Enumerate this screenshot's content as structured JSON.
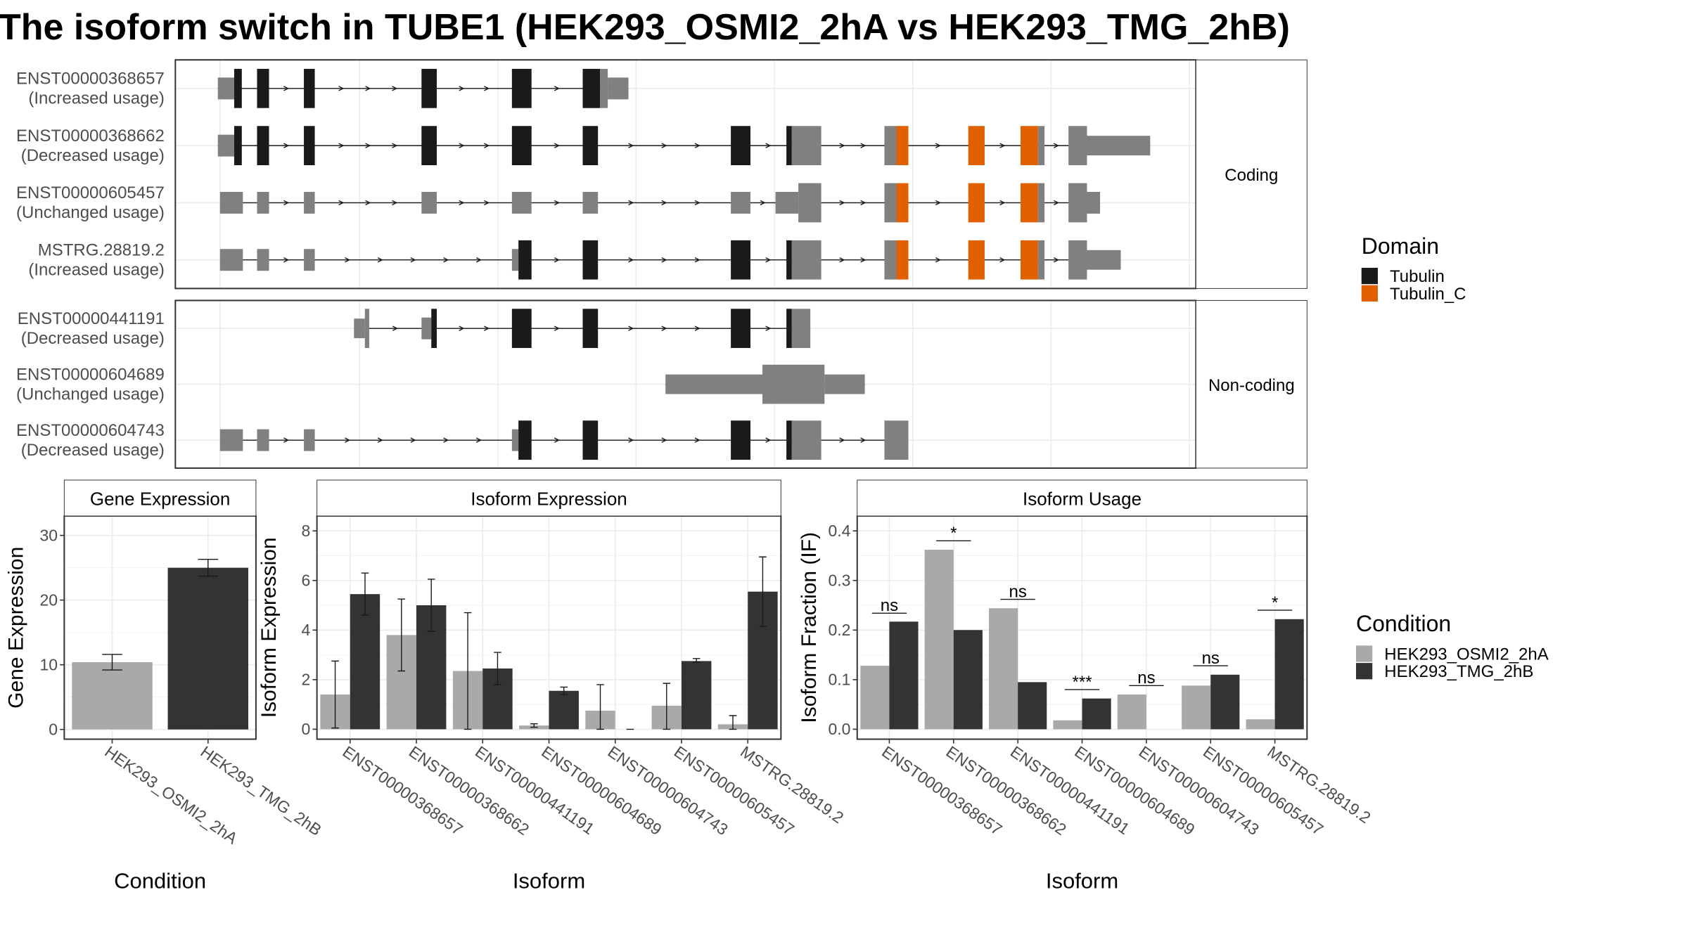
{
  "title": "The isoform switch in TUBE1 (HEK293_OSMI2_2hA vs HEK293_TMG_2hB)",
  "colors": {
    "utr": "#808080",
    "tubulin": "#1a1a1a",
    "tubulin_c": "#e06000",
    "cond_a": "#a9a9a9",
    "cond_b": "#333333"
  },
  "structure": {
    "coding_label": "Coding",
    "noncoding_label": "Non-coding",
    "coding": [
      {
        "id": "ENST00000368657",
        "usage": "(Increased usage)",
        "features": [
          [
            200,
            215,
            "utr",
            0.5
          ],
          [
            215,
            222,
            "tubulin",
            0.9
          ],
          [
            236,
            247,
            "tubulin",
            0.9
          ],
          [
            279,
            289,
            "tubulin",
            0.9
          ],
          [
            387,
            401,
            "tubulin",
            0.9
          ],
          [
            470,
            488,
            "tubulin",
            0.9
          ],
          [
            535,
            551,
            "tubulin",
            0.9
          ],
          [
            551,
            558,
            "utr",
            0.9
          ],
          [
            558,
            577,
            "utr",
            0.5
          ]
        ]
      },
      {
        "id": "ENST00000368662",
        "usage": "(Decreased usage)",
        "features": [
          [
            200,
            215,
            "utr",
            0.5
          ],
          [
            215,
            222,
            "tubulin",
            0.9
          ],
          [
            236,
            247,
            "tubulin",
            0.9
          ],
          [
            279,
            289,
            "tubulin",
            0.9
          ],
          [
            387,
            401,
            "tubulin",
            0.9
          ],
          [
            470,
            488,
            "tubulin",
            0.9
          ],
          [
            535,
            549,
            "tubulin",
            0.9
          ],
          [
            671,
            689,
            "tubulin",
            0.9
          ],
          [
            722,
            727,
            "tubulin",
            0.9
          ],
          [
            727,
            754,
            "utr",
            0.9
          ],
          [
            812,
            823,
            "utr",
            0.9
          ],
          [
            823,
            834,
            "tubulin_c",
            0.9
          ],
          [
            889,
            904,
            "tubulin_c",
            0.9
          ],
          [
            937,
            953,
            "tubulin_c",
            0.9
          ],
          [
            953,
            959,
            "utr",
            0.9
          ],
          [
            981,
            998,
            "utr",
            0.9
          ],
          [
            998,
            1056,
            "utr",
            0.45
          ]
        ]
      },
      {
        "id": "ENST00000605457",
        "usage": "(Unchanged usage)",
        "features": [
          [
            202,
            223,
            "utr",
            0.5
          ],
          [
            236,
            247,
            "utr",
            0.5
          ],
          [
            279,
            289,
            "utr",
            0.5
          ],
          [
            387,
            401,
            "utr",
            0.5
          ],
          [
            470,
            488,
            "utr",
            0.5
          ],
          [
            535,
            549,
            "utr",
            0.5
          ],
          [
            671,
            689,
            "utr",
            0.5
          ],
          [
            712,
            733,
            "utr",
            0.5
          ],
          [
            733,
            754,
            "utr",
            0.9
          ],
          [
            812,
            823,
            "utr",
            0.9
          ],
          [
            823,
            834,
            "tubulin_c",
            0.9
          ],
          [
            889,
            904,
            "tubulin_c",
            0.9
          ],
          [
            937,
            953,
            "tubulin_c",
            0.9
          ],
          [
            953,
            959,
            "utr",
            0.9
          ],
          [
            981,
            998,
            "utr",
            0.9
          ],
          [
            998,
            1010,
            "utr",
            0.5
          ]
        ]
      },
      {
        "id": "MSTRG.28819.2",
        "usage": "(Increased usage)",
        "features": [
          [
            202,
            223,
            "utr",
            0.5
          ],
          [
            236,
            247,
            "utr",
            0.5
          ],
          [
            279,
            289,
            "utr",
            0.5
          ],
          [
            470,
            476,
            "utr",
            0.5
          ],
          [
            476,
            488,
            "tubulin",
            0.9
          ],
          [
            535,
            549,
            "tubulin",
            0.9
          ],
          [
            671,
            689,
            "tubulin",
            0.9
          ],
          [
            722,
            727,
            "tubulin",
            0.9
          ],
          [
            727,
            754,
            "utr",
            0.9
          ],
          [
            812,
            823,
            "utr",
            0.9
          ],
          [
            823,
            834,
            "tubulin_c",
            0.9
          ],
          [
            889,
            904,
            "tubulin_c",
            0.9
          ],
          [
            937,
            953,
            "tubulin_c",
            0.9
          ],
          [
            953,
            959,
            "utr",
            0.9
          ],
          [
            981,
            998,
            "utr",
            0.9
          ],
          [
            998,
            1029,
            "utr",
            0.45
          ]
        ]
      }
    ],
    "noncoding": [
      {
        "id": "ENST00000441191",
        "usage": "(Decreased usage)",
        "features": [
          [
            325,
            335,
            "utr",
            0.45
          ],
          [
            335,
            339,
            "utr",
            0.9
          ],
          [
            387,
            396,
            "utr",
            0.5
          ],
          [
            396,
            401,
            "tubulin",
            0.9
          ],
          [
            470,
            488,
            "tubulin",
            0.9
          ],
          [
            535,
            549,
            "tubulin",
            0.9
          ],
          [
            671,
            689,
            "tubulin",
            0.9
          ],
          [
            722,
            727,
            "tubulin",
            0.9
          ],
          [
            727,
            744,
            "utr",
            0.9
          ]
        ]
      },
      {
        "id": "ENST00000604689",
        "usage": "(Unchanged usage)",
        "features": [
          [
            611,
            700,
            "utr",
            0.45
          ],
          [
            700,
            757,
            "utr",
            0.9
          ],
          [
            757,
            794,
            "utr",
            0.45
          ]
        ]
      },
      {
        "id": "ENST00000604743",
        "usage": "(Decreased usage)",
        "features": [
          [
            202,
            223,
            "utr",
            0.5
          ],
          [
            236,
            247,
            "utr",
            0.5
          ],
          [
            279,
            289,
            "utr",
            0.5
          ],
          [
            470,
            476,
            "utr",
            0.5
          ],
          [
            476,
            488,
            "tubulin",
            0.9
          ],
          [
            535,
            549,
            "tubulin",
            0.9
          ],
          [
            671,
            689,
            "tubulin",
            0.9
          ],
          [
            722,
            727,
            "tubulin",
            0.9
          ],
          [
            727,
            754,
            "utr",
            0.9
          ],
          [
            812,
            834,
            "utr",
            0.9
          ]
        ]
      }
    ],
    "legend_title": "Domain",
    "legend": [
      {
        "label": "Tubulin",
        "color": "#1a1a1a"
      },
      {
        "label": "Tubulin_C",
        "color": "#e06000"
      }
    ]
  },
  "chart_data": [
    {
      "type": "bar",
      "title": "Gene Expression",
      "xlabel": "Condition",
      "ylabel": "Gene Expression",
      "ylim": [
        -1.5,
        33
      ],
      "yticks": [
        0,
        10,
        20,
        30
      ],
      "categories": [
        "HEK293_OSMI2_2hA",
        "HEK293_TMG_2hB"
      ],
      "values": [
        10.4,
        25.0
      ],
      "errors": [
        [
          9.2,
          11.6
        ],
        [
          23.7,
          26.3
        ]
      ],
      "colors": [
        "#a9a9a9",
        "#333333"
      ]
    },
    {
      "type": "bar",
      "title": "Isoform Expression",
      "xlabel": "Isoform",
      "ylabel": "Isoform Expression",
      "ylim": [
        -0.4,
        8.6
      ],
      "yticks": [
        0,
        2,
        4,
        6,
        8
      ],
      "categories": [
        "ENST00000368657",
        "ENST00000368662",
        "ENST00000441191",
        "ENST00000604689",
        "ENST00000604743",
        "ENST00000605457",
        "MSTRG.28819.2"
      ],
      "series": [
        {
          "name": "HEK293_OSMI2_2hA",
          "color": "#a9a9a9",
          "values": [
            1.4,
            3.8,
            2.35,
            0.15,
            0.75,
            0.95,
            0.2
          ],
          "errors": [
            [
              0.05,
              2.75
            ],
            [
              2.35,
              5.25
            ],
            [
              0.0,
              4.7
            ],
            [
              0.08,
              0.22
            ],
            [
              0.0,
              1.8
            ],
            [
              0.0,
              1.85
            ],
            [
              0.0,
              0.55
            ]
          ]
        },
        {
          "name": "HEK293_TMG_2hB",
          "color": "#333333",
          "values": [
            5.45,
            5.0,
            2.45,
            1.55,
            0.0,
            2.75,
            5.55
          ],
          "errors": [
            [
              4.6,
              6.3
            ],
            [
              3.95,
              6.05
            ],
            [
              1.8,
              3.1
            ],
            [
              1.4,
              1.7
            ],
            [
              0.0,
              0.0
            ],
            [
              2.7,
              2.85
            ],
            [
              4.15,
              6.95
            ]
          ]
        }
      ]
    },
    {
      "type": "bar",
      "title": "Isoform Usage",
      "xlabel": "Isoform",
      "ylabel": "Isoform Fraction (IF)",
      "ylim": [
        -0.02,
        0.43
      ],
      "yticks": [
        0.0,
        0.1,
        0.2,
        0.3,
        0.4
      ],
      "ytick_labels": [
        "0.0",
        "0.1",
        "0.2",
        "0.3",
        "0.4"
      ],
      "categories": [
        "ENST00000368657",
        "ENST00000368662",
        "ENST00000441191",
        "ENST00000604689",
        "ENST00000604743",
        "ENST00000605457",
        "MSTRG.28819.2"
      ],
      "series": [
        {
          "name": "HEK293_OSMI2_2hA",
          "color": "#a9a9a9",
          "values": [
            0.128,
            0.362,
            0.244,
            0.018,
            0.07,
            0.088,
            0.02
          ]
        },
        {
          "name": "HEK293_TMG_2hB",
          "color": "#333333",
          "values": [
            0.217,
            0.2,
            0.095,
            0.062,
            0.0,
            0.11,
            0.222
          ]
        }
      ],
      "significance": [
        {
          "label": "ns",
          "y": 0.234
        },
        {
          "label": "*",
          "y": 0.38
        },
        {
          "label": "ns",
          "y": 0.262
        },
        {
          "label": "***",
          "y": 0.08
        },
        {
          "label": "ns",
          "y": 0.088
        },
        {
          "label": "ns",
          "y": 0.128
        },
        {
          "label": "*",
          "y": 0.24
        }
      ]
    }
  ],
  "condition_legend": {
    "title": "Condition",
    "items": [
      {
        "label": "HEK293_OSMI2_2hA",
        "color": "#a9a9a9"
      },
      {
        "label": "HEK293_TMG_2hB",
        "color": "#333333"
      }
    ]
  }
}
